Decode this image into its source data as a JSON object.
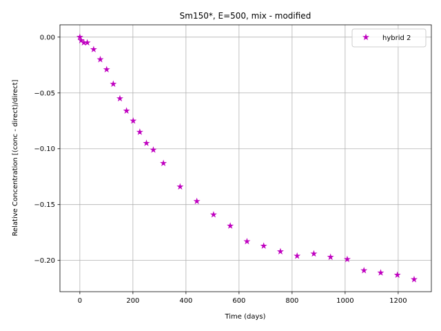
{
  "chart_data": {
    "type": "scatter",
    "title": "Sm150*, E=500, mix - modified",
    "xlabel": "Time (days)",
    "ylabel": "Relative Concentration [(conc - direct)/direct]",
    "xlim": [
      -75,
      1325
    ],
    "ylim": [
      -0.228,
      0.011
    ],
    "xticks": [
      0,
      200,
      400,
      600,
      800,
      1000,
      1200
    ],
    "xtick_labels": [
      "0",
      "200",
      "400",
      "600",
      "800",
      "1000",
      "1200"
    ],
    "yticks": [
      0.0,
      -0.05,
      -0.1,
      -0.15,
      -0.2
    ],
    "ytick_labels": [
      "0.00",
      "−0.05",
      "−0.10",
      "−0.15",
      "−0.20"
    ],
    "grid": true,
    "legend_position": "top-right",
    "series": [
      {
        "name": "hybrid 2",
        "color": "#bf00bf",
        "marker": "star",
        "x": [
          0,
          5,
          15,
          28,
          52,
          77,
          101,
          126,
          151,
          176,
          201,
          226,
          251,
          277,
          315,
          378,
          441,
          504,
          567,
          630,
          693,
          756,
          819,
          882,
          945,
          1008,
          1071,
          1134,
          1197,
          1260
        ],
        "y": [
          0.0,
          -0.003,
          -0.005,
          -0.005,
          -0.011,
          -0.02,
          -0.029,
          -0.042,
          -0.055,
          -0.066,
          -0.075,
          -0.085,
          -0.095,
          -0.101,
          -0.113,
          -0.134,
          -0.147,
          -0.159,
          -0.169,
          -0.183,
          -0.187,
          -0.192,
          -0.196,
          -0.194,
          -0.197,
          -0.199,
          -0.209,
          -0.211,
          -0.213,
          -0.217
        ]
      }
    ]
  }
}
